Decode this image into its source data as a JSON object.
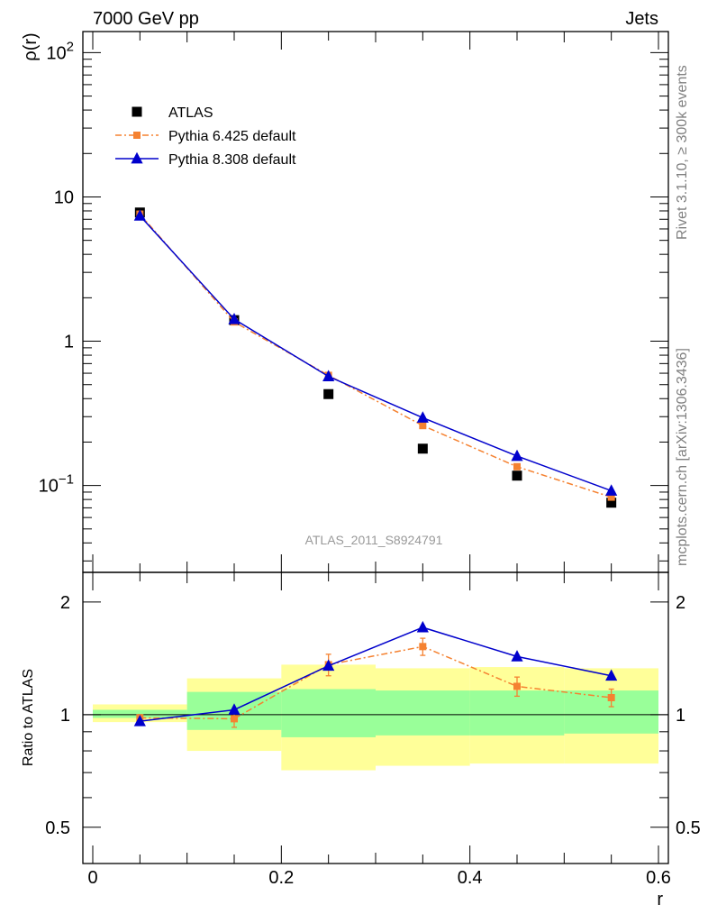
{
  "header": {
    "left": "7000 GeV pp",
    "right": "Jets"
  },
  "side_labels": {
    "top": "Rivet 3.1.10, ≥ 300k events",
    "bottom": "mcplots.cern.ch [arXiv:1306.3436]"
  },
  "watermark": "ATLAS_2011_S8924791",
  "colors": {
    "atlas": "#000000",
    "pythia6": "#f58231",
    "pythia8": "#0000cc",
    "band_outer": "#ffff99",
    "band_inner": "#99ff99"
  },
  "chart_data": [
    {
      "type": "scatter",
      "ylabel": "ρ(r)",
      "yscale": "log",
      "xlim": [
        0,
        0.6
      ],
      "ylim": [
        0.025,
        140
      ],
      "yticks": [
        {
          "value": 100,
          "label": "10",
          "sup": "2"
        },
        {
          "value": 10,
          "label": "10",
          "sup": ""
        },
        {
          "value": 1,
          "label": "1",
          "sup": ""
        },
        {
          "value": 0.1,
          "label": "10",
          "sup": "−1"
        }
      ],
      "legend_position": "top-left",
      "series": [
        {
          "name": "ATLAS",
          "marker": "square",
          "color": "#000000",
          "x": [
            0.05,
            0.15,
            0.25,
            0.35,
            0.45,
            0.55
          ],
          "y": [
            7.8,
            1.4,
            0.43,
            0.18,
            0.117,
            0.076
          ]
        },
        {
          "name": "Pythia 6.425 default",
          "marker": "square",
          "line": "dashdot",
          "color": "#f58231",
          "x": [
            0.05,
            0.15,
            0.25,
            0.35,
            0.45,
            0.55
          ],
          "y": [
            7.6,
            1.36,
            0.58,
            0.26,
            0.135,
            0.083
          ]
        },
        {
          "name": "Pythia 8.308 default",
          "marker": "triangle",
          "line": "solid",
          "color": "#0000cc",
          "x": [
            0.05,
            0.15,
            0.25,
            0.35,
            0.45,
            0.55
          ],
          "y": [
            7.4,
            1.42,
            0.57,
            0.295,
            0.16,
            0.092
          ]
        }
      ]
    },
    {
      "type": "line",
      "xlabel": "r",
      "ylabel": "Ratio to ATLAS",
      "yscale": "log",
      "xlim": [
        0,
        0.6
      ],
      "ylim": [
        0.4,
        2.4
      ],
      "xticks": [
        {
          "value": 0,
          "label": "0"
        },
        {
          "value": 0.2,
          "label": "0.2"
        },
        {
          "value": 0.4,
          "label": "0.4"
        },
        {
          "value": 0.6,
          "label": "0.6"
        }
      ],
      "yticks": [
        {
          "value": 0.5,
          "label": "0.5"
        },
        {
          "value": 1,
          "label": "1"
        },
        {
          "value": 2,
          "label": "2"
        }
      ],
      "bands": {
        "edges": [
          0,
          0.1,
          0.2,
          0.3,
          0.4,
          0.5,
          0.6
        ],
        "outer": [
          [
            0.955,
            1.065
          ],
          [
            0.8,
            1.25
          ],
          [
            0.71,
            1.36
          ],
          [
            0.73,
            1.33
          ],
          [
            0.74,
            1.34
          ],
          [
            0.74,
            1.33
          ]
        ],
        "inner": [
          [
            0.98,
            1.03
          ],
          [
            0.91,
            1.15
          ],
          [
            0.87,
            1.17
          ],
          [
            0.88,
            1.16
          ],
          [
            0.88,
            1.16
          ],
          [
            0.89,
            1.16
          ]
        ]
      },
      "series": [
        {
          "name": "Pythia 6.425 default",
          "marker": "square",
          "line": "dashdot",
          "color": "#f58231",
          "x": [
            0.05,
            0.15,
            0.25,
            0.35,
            0.45,
            0.55
          ],
          "y": [
            0.98,
            0.975,
            1.36,
            1.52,
            1.19,
            1.11
          ],
          "err": [
            0.02,
            0.05,
            0.09,
            0.08,
            0.07,
            0.06
          ]
        },
        {
          "name": "Pythia 8.308 default",
          "marker": "triangle",
          "line": "solid",
          "color": "#0000cc",
          "x": [
            0.05,
            0.15,
            0.25,
            0.35,
            0.45,
            0.55
          ],
          "y": [
            0.96,
            1.03,
            1.35,
            1.71,
            1.43,
            1.27
          ]
        }
      ]
    }
  ]
}
